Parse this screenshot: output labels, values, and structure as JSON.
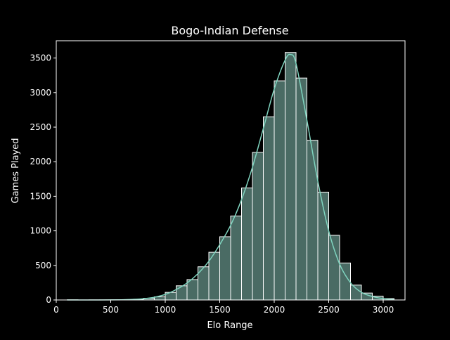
{
  "chart_data": {
    "type": "bar",
    "title": "Bogo-Indian Defense",
    "xlabel": "Elo Range",
    "ylabel": "Games Played",
    "xlim": [
      0,
      3200
    ],
    "ylim": [
      0,
      3750
    ],
    "xticks": [
      0,
      500,
      1000,
      1500,
      2000,
      2500,
      3000
    ],
    "yticks": [
      0,
      500,
      1000,
      1500,
      2000,
      2500,
      3000,
      3500
    ],
    "bin_width": 100,
    "bins": [
      {
        "x0": 100,
        "x1": 200,
        "value": 2
      },
      {
        "x0": 200,
        "x1": 300,
        "value": 0
      },
      {
        "x0": 300,
        "x1": 400,
        "value": 1
      },
      {
        "x0": 400,
        "x1": 500,
        "value": 1
      },
      {
        "x0": 500,
        "x1": 600,
        "value": 2
      },
      {
        "x0": 600,
        "x1": 700,
        "value": 4
      },
      {
        "x0": 700,
        "x1": 800,
        "value": 8
      },
      {
        "x0": 800,
        "x1": 900,
        "value": 25
      },
      {
        "x0": 900,
        "x1": 1000,
        "value": 45
      },
      {
        "x0": 1000,
        "x1": 1100,
        "value": 110
      },
      {
        "x0": 1100,
        "x1": 1200,
        "value": 205
      },
      {
        "x0": 1200,
        "x1": 1300,
        "value": 295
      },
      {
        "x0": 1300,
        "x1": 1400,
        "value": 480
      },
      {
        "x0": 1400,
        "x1": 1500,
        "value": 690
      },
      {
        "x0": 1500,
        "x1": 1600,
        "value": 915
      },
      {
        "x0": 1600,
        "x1": 1700,
        "value": 1215
      },
      {
        "x0": 1700,
        "x1": 1800,
        "value": 1620
      },
      {
        "x0": 1800,
        "x1": 1900,
        "value": 2135
      },
      {
        "x0": 1900,
        "x1": 2000,
        "value": 2650
      },
      {
        "x0": 2000,
        "x1": 2100,
        "value": 3170
      },
      {
        "x0": 2100,
        "x1": 2200,
        "value": 3580
      },
      {
        "x0": 2200,
        "x1": 2300,
        "value": 3210
      },
      {
        "x0": 2300,
        "x1": 2400,
        "value": 2310
      },
      {
        "x0": 2400,
        "x1": 2500,
        "value": 1560
      },
      {
        "x0": 2500,
        "x1": 2600,
        "value": 935
      },
      {
        "x0": 2600,
        "x1": 2700,
        "value": 535
      },
      {
        "x0": 2700,
        "x1": 2800,
        "value": 215
      },
      {
        "x0": 2800,
        "x1": 2900,
        "value": 100
      },
      {
        "x0": 2900,
        "x1": 3000,
        "value": 55
      },
      {
        "x0": 3000,
        "x1": 3100,
        "value": 20
      }
    ],
    "kde": {
      "x": [
        100,
        400,
        600,
        700,
        800,
        900,
        1000,
        1100,
        1200,
        1300,
        1400,
        1500,
        1600,
        1700,
        1800,
        1900,
        2000,
        2100,
        2150,
        2200,
        2300,
        2400,
        2500,
        2600,
        2700,
        2800,
        2900,
        3000,
        3100
      ],
      "y": [
        0,
        0,
        3,
        8,
        18,
        40,
        80,
        150,
        245,
        380,
        560,
        800,
        1080,
        1450,
        1920,
        2480,
        3050,
        3470,
        3550,
        3420,
        2600,
        1720,
        1000,
        520,
        250,
        110,
        50,
        20,
        5
      ]
    },
    "bar_fill": "#4a6b64",
    "bar_edge": "#ffffff",
    "kde_color": "#7fd4bf",
    "background": "#000000",
    "axis_color": "#ffffff",
    "grid": false,
    "legend": "none"
  }
}
